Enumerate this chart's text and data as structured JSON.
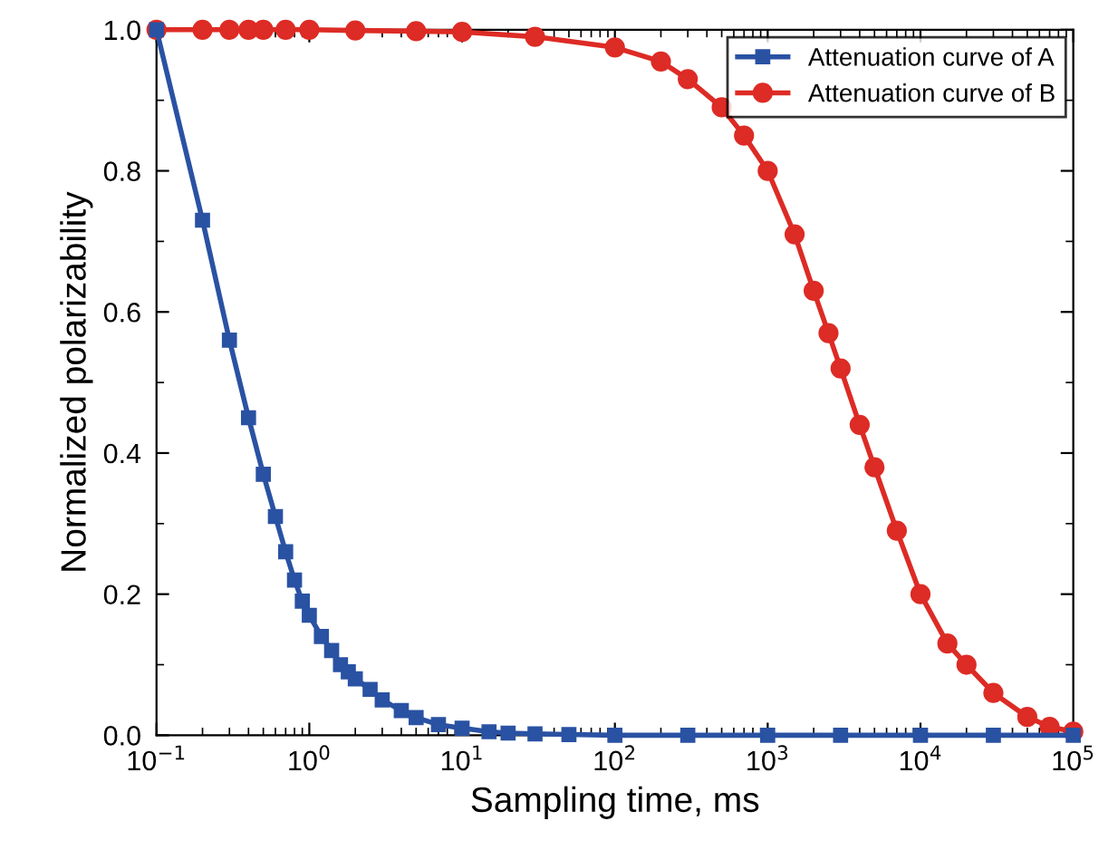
{
  "chart_data": {
    "type": "line",
    "xlabel": "Sampling time, ms",
    "ylabel": "Normalized polarizability",
    "log": "x",
    "xlim": [
      0.1,
      100000
    ],
    "ylim": [
      0,
      1.0
    ],
    "xticks": [
      {
        "value": 0.1,
        "label": "10$^{−1}$"
      },
      {
        "value": 1,
        "label": "10$^{0}$"
      },
      {
        "value": 10,
        "label": "10$^{1}$"
      },
      {
        "value": 100,
        "label": "10$^{2}$"
      },
      {
        "value": 1000,
        "label": "10$^{3}$"
      },
      {
        "value": 10000,
        "label": "10$^{4}$"
      },
      {
        "value": 100000,
        "label": "10$^{5}$"
      }
    ],
    "yticks": [
      {
        "value": 0,
        "label": "0.0"
      },
      0.2,
      0.4,
      0.6,
      0.8,
      {
        "value": 1.0,
        "label": "1.0"
      }
    ],
    "grid": false,
    "legend": "top right",
    "series": [
      {
        "name": "Attenuation curve of A",
        "color": "#2a52a3",
        "marker": "square",
        "x": [
          0.1,
          0.2,
          0.3,
          0.4,
          0.5,
          0.6,
          0.7,
          0.8,
          0.9,
          1.0,
          1.2,
          1.4,
          1.6,
          1.8,
          2,
          2.5,
          3,
          4,
          5,
          7,
          10,
          15,
          20,
          30,
          50,
          100,
          300,
          1000,
          3000,
          10000,
          30000,
          100000
        ],
        "values": [
          1.0,
          0.73,
          0.56,
          0.45,
          0.37,
          0.31,
          0.26,
          0.22,
          0.19,
          0.17,
          0.14,
          0.12,
          0.1,
          0.09,
          0.08,
          0.065,
          0.05,
          0.035,
          0.025,
          0.015,
          0.01,
          0.005,
          0.003,
          0.002,
          0.001,
          0,
          0,
          0,
          0,
          0,
          0,
          0
        ]
      },
      {
        "name": "Attenuation curve of B",
        "color": "#dd2b25",
        "marker": "circle",
        "x": [
          0.1,
          0.2,
          0.3,
          0.4,
          0.5,
          0.7,
          1,
          2,
          5,
          10,
          30,
          100,
          200,
          300,
          500,
          700,
          1000,
          1500,
          2000,
          2500,
          3000,
          4000,
          5000,
          7000,
          10000,
          15000,
          20000,
          30000,
          50000,
          70000,
          100000
        ],
        "values": [
          1.0,
          1.0,
          1.0,
          1.0,
          1.0,
          1.0,
          1.0,
          0.999,
          0.998,
          0.997,
          0.99,
          0.975,
          0.955,
          0.93,
          0.89,
          0.85,
          0.8,
          0.71,
          0.63,
          0.57,
          0.52,
          0.44,
          0.38,
          0.29,
          0.2,
          0.13,
          0.1,
          0.06,
          0.026,
          0.012,
          0.005
        ]
      }
    ]
  }
}
